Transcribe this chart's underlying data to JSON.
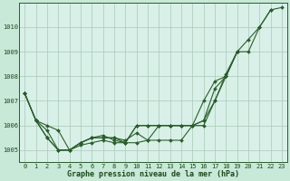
{
  "title": "Graphe pression niveau de la mer (hPa)",
  "bg_color": "#c8e8d8",
  "plot_bg_color": "#d8f0e8",
  "line_color": "#2a5e2a",
  "grid_color": "#a8c8b8",
  "text_color": "#1a4a1a",
  "xlim": [
    -0.5,
    23.5
  ],
  "ylim": [
    1004.5,
    1011.0
  ],
  "yticks": [
    1005,
    1006,
    1007,
    1008,
    1009,
    1010
  ],
  "xticks": [
    0,
    1,
    2,
    3,
    4,
    5,
    6,
    7,
    8,
    9,
    10,
    11,
    12,
    13,
    14,
    15,
    16,
    17,
    18,
    19,
    20,
    21,
    22,
    23
  ],
  "series": [
    [
      1007.3,
      1006.2,
      1005.8,
      1005.0,
      1005.0,
      1005.2,
      1005.3,
      1005.4,
      1005.3,
      1005.3,
      1006.0,
      1006.0,
      1006.0,
      1006.0,
      1006.0,
      1006.0,
      1006.0,
      1007.0,
      1008.0,
      1009.0,
      1009.5,
      1010.0,
      1010.7,
      1010.8
    ],
    [
      1007.3,
      1006.2,
      1006.0,
      1005.8,
      1005.0,
      1005.3,
      1005.5,
      1005.6,
      1005.4,
      1005.3,
      1006.0,
      1006.0,
      1006.0,
      1006.0,
      1006.0,
      1006.0,
      1006.2,
      1007.5,
      1008.0,
      1009.0,
      1009.0,
      1010.0,
      1010.7,
      null
    ],
    [
      1007.3,
      1006.2,
      1005.5,
      1005.0,
      1005.0,
      1005.3,
      1005.5,
      1005.5,
      1005.5,
      1005.3,
      1005.3,
      1005.4,
      1006.0,
      1006.0,
      1006.0,
      1006.0,
      1007.0,
      1007.8,
      1008.0,
      1009.0,
      null,
      null,
      null,
      null
    ],
    [
      1007.3,
      1006.2,
      1005.5,
      1005.0,
      1005.0,
      1005.3,
      1005.5,
      1005.5,
      1005.5,
      1005.4,
      1005.7,
      1005.4,
      1005.4,
      1005.4,
      1005.4,
      1006.0,
      1006.2,
      1007.0,
      1008.1,
      1009.0,
      null,
      null,
      null,
      null
    ]
  ],
  "marker": "D",
  "markersize": 2.0,
  "linewidth": 0.8,
  "title_fontsize": 6.0,
  "tick_fontsize": 5.0
}
